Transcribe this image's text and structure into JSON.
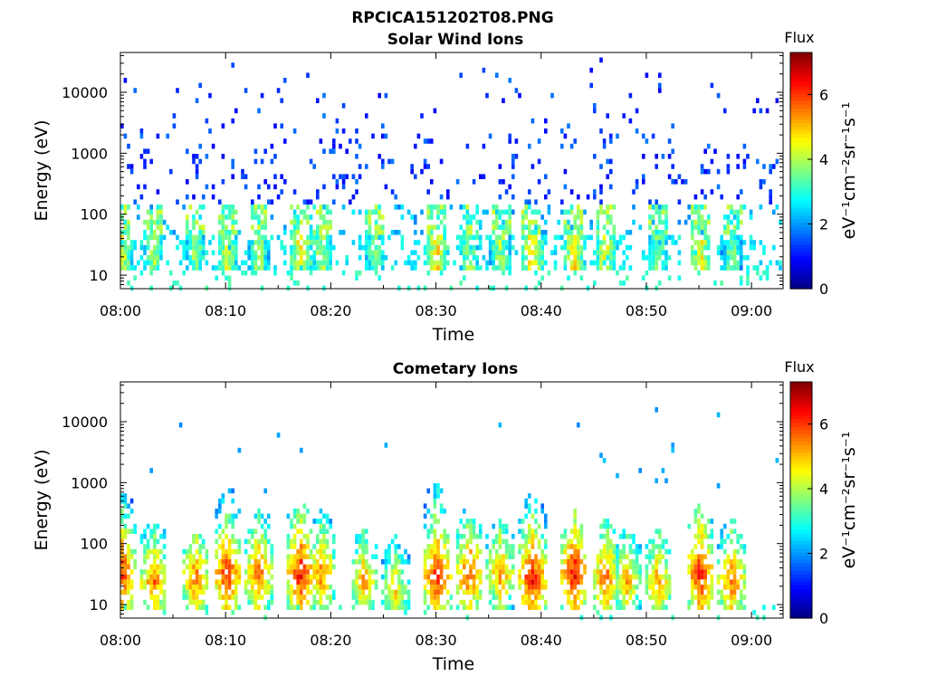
{
  "figure_title": "RPCICA151202T08.PNG",
  "chart_data": [
    {
      "type": "heatmap",
      "title": "Solar Wind Ions",
      "xlabel": "Time",
      "ylabel": "Energy (eV)",
      "y_scale": "log",
      "xlim": [
        "08:00",
        "09:03"
      ],
      "ylim": [
        6,
        45000
      ],
      "x_ticks": [
        "08:00",
        "08:10",
        "08:20",
        "08:30",
        "08:40",
        "08:50",
        "09:00"
      ],
      "y_ticks": [
        "10",
        "100",
        "1000",
        "10000"
      ],
      "colorbar": {
        "label": "Flux",
        "units": "eV⁻¹cm⁻²sr⁻¹s⁻¹",
        "range": [
          0,
          7.3
        ],
        "ticks": [
          "0",
          "2",
          "4",
          "6"
        ],
        "colormap": "jet"
      },
      "grid": false,
      "features": [
        {
          "time": "08:00",
          "energy_peak": 35,
          "flux": 5.0
        },
        {
          "time": "08:03",
          "energy_peak": 35,
          "flux": 4.5
        },
        {
          "time": "08:07",
          "energy_peak": 30,
          "flux": 4.4
        },
        {
          "time": "08:10",
          "energy_peak": 35,
          "flux": 4.8
        },
        {
          "time": "08:13",
          "energy_peak": 60,
          "flux": 4.5
        },
        {
          "time": "08:17",
          "energy_peak": 35,
          "flux": 5.4
        },
        {
          "time": "08:19",
          "energy_peak": 35,
          "flux": 4.6
        },
        {
          "time": "08:24",
          "energy_peak": 30,
          "flux": 4.2
        },
        {
          "time": "08:30",
          "energy_peak": 35,
          "flux": 5.3
        },
        {
          "time": "08:33",
          "energy_peak": 35,
          "flux": 4.6
        },
        {
          "time": "08:36",
          "energy_peak": 35,
          "flux": 4.6
        },
        {
          "time": "08:39",
          "energy_peak": 30,
          "flux": 5.5
        },
        {
          "time": "08:43",
          "energy_peak": 35,
          "flux": 5.4
        },
        {
          "time": "08:46",
          "energy_peak": 35,
          "flux": 5.0
        },
        {
          "time": "08:51",
          "energy_peak": 30,
          "flux": 4.4
        },
        {
          "time": "08:55",
          "energy_peak": 35,
          "flux": 5.2
        },
        {
          "time": "08:58",
          "energy_peak": 25,
          "flux": 4.2
        }
      ]
    },
    {
      "type": "heatmap",
      "title": "Cometary Ions",
      "xlabel": "Time",
      "ylabel": "Energy (eV)",
      "y_scale": "log",
      "xlim": [
        "08:00",
        "09:03"
      ],
      "ylim": [
        6,
        45000
      ],
      "x_ticks": [
        "08:00",
        "08:10",
        "08:20",
        "08:30",
        "08:40",
        "08:50",
        "09:00"
      ],
      "y_ticks": [
        "10",
        "100",
        "1000",
        "10000"
      ],
      "colorbar": {
        "label": "Flux",
        "units": "eV⁻¹cm⁻²sr⁻¹s⁻¹",
        "range": [
          0,
          7.3
        ],
        "ticks": [
          "0",
          "2",
          "4",
          "6"
        ],
        "colormap": "jet"
      },
      "grid": false,
      "features": [
        {
          "time": "08:00",
          "energy_peak": 35,
          "energy_top": 1000,
          "flux": 6.6
        },
        {
          "time": "08:03",
          "energy_peak": 25,
          "energy_top": 300,
          "flux": 6.2
        },
        {
          "time": "08:07",
          "energy_peak": 30,
          "energy_top": 200,
          "flux": 6.2
        },
        {
          "time": "08:10",
          "energy_peak": 35,
          "energy_top": 1200,
          "flux": 6.7
        },
        {
          "time": "08:13",
          "energy_peak": 35,
          "energy_top": 500,
          "flux": 6.3
        },
        {
          "time": "08:17",
          "energy_peak": 35,
          "energy_top": 600,
          "flux": 6.9
        },
        {
          "time": "08:19",
          "energy_peak": 35,
          "energy_top": 400,
          "flux": 6.1
        },
        {
          "time": "08:23",
          "energy_peak": 25,
          "energy_top": 200,
          "flux": 5.9
        },
        {
          "time": "08:26",
          "energy_peak": 20,
          "energy_top": 150,
          "flux": 5.4
        },
        {
          "time": "08:30",
          "energy_peak": 35,
          "energy_top": 1500,
          "flux": 6.8
        },
        {
          "time": "08:33",
          "energy_peak": 35,
          "energy_top": 500,
          "flux": 6.5
        },
        {
          "time": "08:36",
          "energy_peak": 35,
          "energy_top": 300,
          "flux": 6.0
        },
        {
          "time": "08:39",
          "energy_peak": 30,
          "energy_top": 800,
          "flux": 6.9
        },
        {
          "time": "08:43",
          "energy_peak": 35,
          "energy_top": 400,
          "flux": 6.9
        },
        {
          "time": "08:46",
          "energy_peak": 30,
          "energy_top": 300,
          "flux": 6.3
        },
        {
          "time": "08:48",
          "energy_peak": 25,
          "energy_top": 200,
          "flux": 5.8
        },
        {
          "time": "08:51",
          "energy_peak": 25,
          "energy_top": 200,
          "flux": 6.0
        },
        {
          "time": "08:55",
          "energy_peak": 35,
          "energy_top": 500,
          "flux": 6.8
        },
        {
          "time": "08:58",
          "energy_peak": 25,
          "energy_top": 300,
          "flux": 6.2
        }
      ]
    }
  ]
}
